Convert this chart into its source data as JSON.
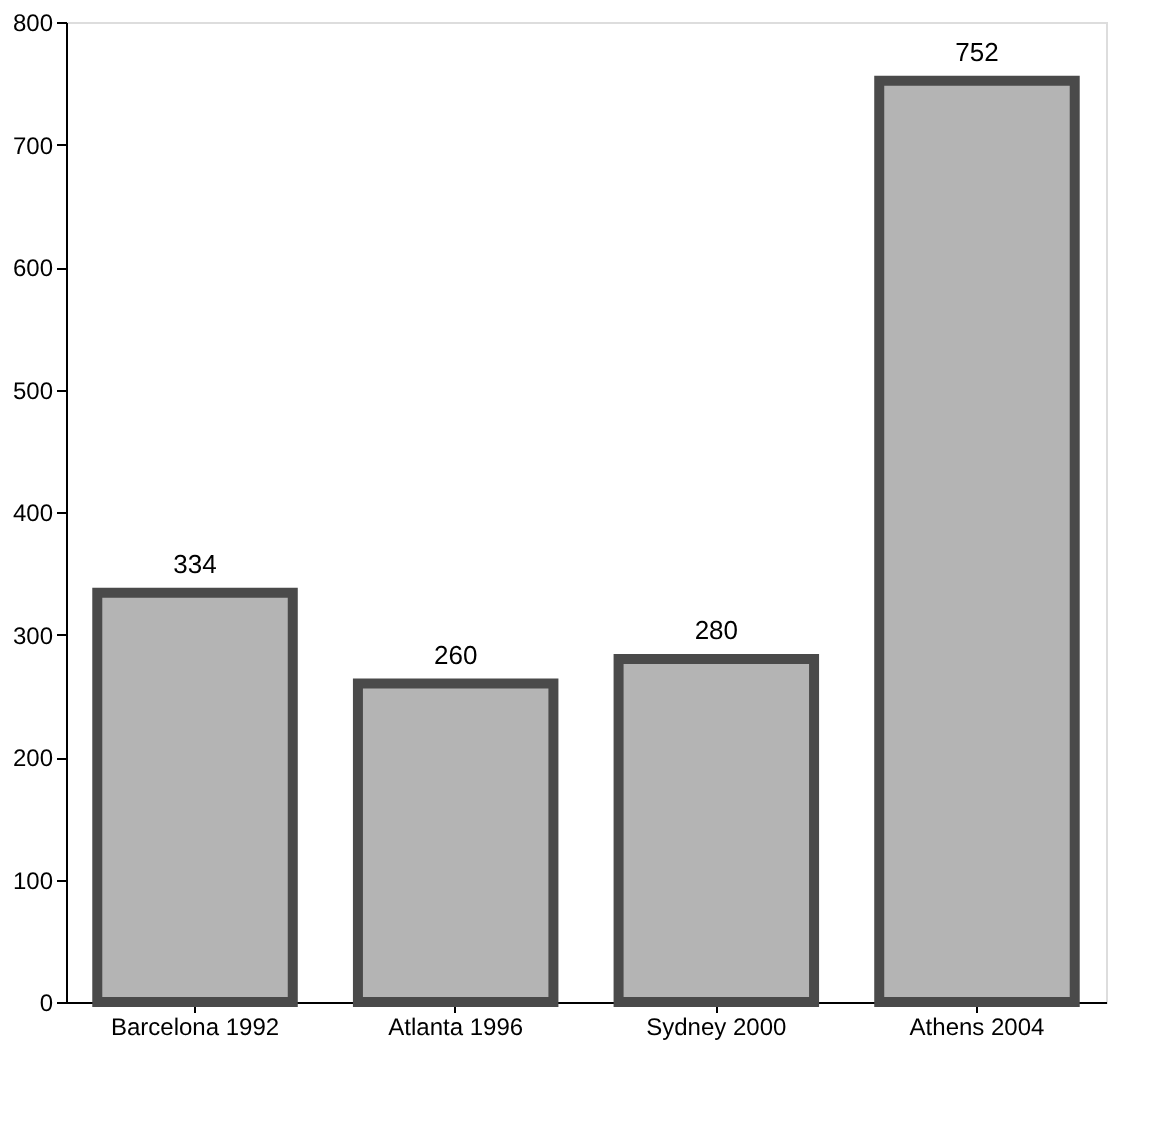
{
  "chart_data": {
    "type": "bar",
    "categories": [
      "Barcelona 1992",
      "Atlanta 1996",
      "Sydney 2000",
      "Athens 2004"
    ],
    "values": [
      334,
      260,
      280,
      752
    ],
    "color": "#b4b4b4",
    "ylim": [
      0,
      800
    ],
    "yticks": [
      0,
      100,
      200,
      300,
      400,
      500,
      600,
      700,
      800
    ],
    "data_labels": true,
    "grid": false
  }
}
